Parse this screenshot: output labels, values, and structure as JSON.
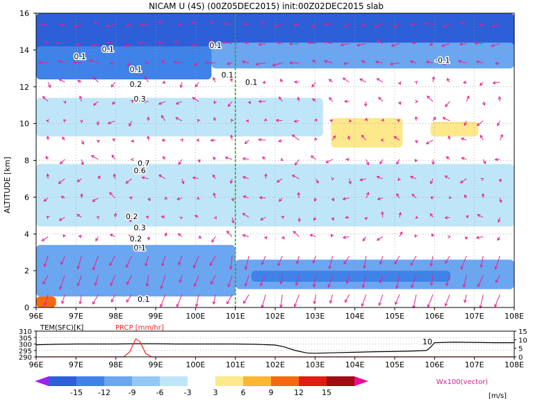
{
  "title": "NICAM U (4S) (00Z05DEC2015) init:00Z02DEC2015 slab",
  "colors": {
    "background": "#ffffff",
    "vector": "#e8208c",
    "contour": "#000000",
    "marker_line": "#22aa22",
    "precip_line": "#ff2020",
    "temp_line": "#000000"
  },
  "chart_data": [
    {
      "type": "heatmap",
      "panel": "cross-section",
      "xlabel": "",
      "ylabel": "ALTITUDE [km]",
      "x_tick_labels": [
        "96E",
        "97E",
        "98E",
        "99E",
        "100E",
        "101E",
        "102E",
        "103E",
        "104E",
        "105E",
        "106E",
        "107E",
        "108E"
      ],
      "y_tick_labels": [
        "0",
        "2",
        "4",
        "6",
        "8",
        "10",
        "12",
        "14",
        "16"
      ],
      "xlim": [
        96,
        108
      ],
      "ylim": [
        0,
        16
      ],
      "grid": true,
      "vertical_marker_x": 101.0,
      "vector_label": "Wx100(vector)",
      "shaded_regions": [
        {
          "u": -12,
          "x0": 96.0,
          "x1": 108.0,
          "y0": 13.2,
          "y1": 16.0
        },
        {
          "u": -9,
          "x0": 96.0,
          "x1": 100.4,
          "y0": 12.4,
          "y1": 14.2
        },
        {
          "u": -6,
          "x0": 100.4,
          "x1": 108.0,
          "y0": 13.0,
          "y1": 14.4
        },
        {
          "u": -3,
          "x0": 96.0,
          "x1": 103.2,
          "y0": 9.3,
          "y1": 11.4
        },
        {
          "u": -3,
          "x0": 96.0,
          "x1": 108.0,
          "y0": 4.4,
          "y1": 7.8
        },
        {
          "u": -6,
          "x0": 96.0,
          "x1": 101.0,
          "y0": 0.6,
          "y1": 3.4
        },
        {
          "u": -6,
          "x0": 101.0,
          "x1": 108.0,
          "y0": 1.0,
          "y1": 2.6
        },
        {
          "u": -9,
          "x0": 101.4,
          "x1": 106.4,
          "y0": 1.4,
          "y1": 2.0
        },
        {
          "u": 3,
          "x0": 103.4,
          "x1": 105.2,
          "y0": 8.7,
          "y1": 10.3
        },
        {
          "u": 3,
          "x0": 105.9,
          "x1": 107.1,
          "y0": 9.3,
          "y1": 10.1
        },
        {
          "u": 9,
          "x0": 96.0,
          "x1": 96.5,
          "y0": 0.0,
          "y1": 0.6
        }
      ],
      "contour_labels": [
        {
          "label": "0.1",
          "x": 97.1,
          "y": 13.5
        },
        {
          "label": "0.1",
          "x": 97.8,
          "y": 13.9
        },
        {
          "label": "0.1",
          "x": 98.5,
          "y": 12.8
        },
        {
          "label": "0.2",
          "x": 98.5,
          "y": 12.0
        },
        {
          "label": "0.3",
          "x": 98.6,
          "y": 11.2
        },
        {
          "label": "0.7",
          "x": 98.7,
          "y": 7.7
        },
        {
          "label": "0.6",
          "x": 98.6,
          "y": 7.3
        },
        {
          "label": "0.2",
          "x": 98.4,
          "y": 4.8
        },
        {
          "label": "0.3",
          "x": 98.6,
          "y": 4.2
        },
        {
          "label": "0.2",
          "x": 98.5,
          "y": 3.6
        },
        {
          "label": "0.1",
          "x": 98.6,
          "y": 3.1
        },
        {
          "label": "0.1",
          "x": 98.7,
          "y": 0.3
        },
        {
          "label": "0.1",
          "x": 100.5,
          "y": 14.1
        },
        {
          "label": "0.1",
          "x": 100.8,
          "y": 12.5
        },
        {
          "label": "0.1",
          "x": 101.4,
          "y": 12.1
        },
        {
          "label": "-0.1",
          "x": 106.2,
          "y": 13.3
        }
      ]
    },
    {
      "type": "line",
      "panel": "surface",
      "x_tick_labels": [
        "96E",
        "97E",
        "98E",
        "99E",
        "100E",
        "101E",
        "102E",
        "103E",
        "104E",
        "105E",
        "106E",
        "107E",
        "108E"
      ],
      "xlim": [
        96,
        108
      ],
      "series": [
        {
          "name": "TEM(SFC)[K]",
          "axis": "left",
          "ylim": [
            290,
            310
          ],
          "y_tick_labels": [
            "290",
            "295",
            "300",
            "305",
            "310"
          ],
          "x": [
            96.0,
            96.5,
            97.0,
            97.5,
            98.0,
            98.5,
            99.0,
            99.5,
            100.0,
            100.5,
            101.0,
            101.5,
            102.0,
            102.2,
            102.5,
            102.8,
            103.0,
            103.5,
            104.0,
            104.5,
            105.0,
            105.5,
            105.8,
            105.9,
            106.0,
            106.5,
            107.0,
            107.5,
            108.0
          ],
          "values": [
            299.4,
            299.8,
            300.0,
            300.0,
            300.0,
            300.2,
            300.2,
            300.0,
            300.0,
            300.0,
            300.0,
            299.8,
            299.2,
            298.0,
            295.0,
            293.0,
            292.8,
            293.2,
            293.6,
            294.0,
            294.2,
            294.6,
            295.0,
            297.5,
            301.0,
            301.4,
            301.2,
            301.0,
            301.0
          ]
        },
        {
          "name": "PRCP [mm/hr]",
          "axis": "right",
          "ylim": [
            0,
            15
          ],
          "y_tick_labels": [
            "0",
            "5",
            "10",
            "15"
          ],
          "x": [
            96.0,
            98.2,
            98.35,
            98.5,
            98.6,
            98.75,
            98.9,
            108.0
          ],
          "values": [
            0,
            0,
            3,
            10.5,
            9,
            2,
            0,
            0
          ]
        }
      ],
      "annotation_label": "10"
    },
    {
      "type": "colorbar",
      "tick_labels": [
        "-15",
        "-12",
        "-9",
        "-6",
        "-3",
        "3",
        "6",
        "9",
        "12",
        "15"
      ],
      "unit": "[m/s]",
      "colors": [
        "#a020f0",
        "#2c5fd8",
        "#3f82e8",
        "#6ba6f0",
        "#95c7f5",
        "#bfe6f8",
        "#ffffff",
        "#fde88a",
        "#fdb632",
        "#f56a10",
        "#e01c14",
        "#a00c14",
        "#f00a94"
      ]
    }
  ],
  "labels": {
    "ylabel_main": "ALTITUDE [km]",
    "tem_label": "TEM(SFC)[K]",
    "prcp_label": "PRCP [mm/hr]",
    "colorbar_unit": "[m/s]",
    "vector_label": "Wx100(vector)",
    "annotation": "10"
  }
}
